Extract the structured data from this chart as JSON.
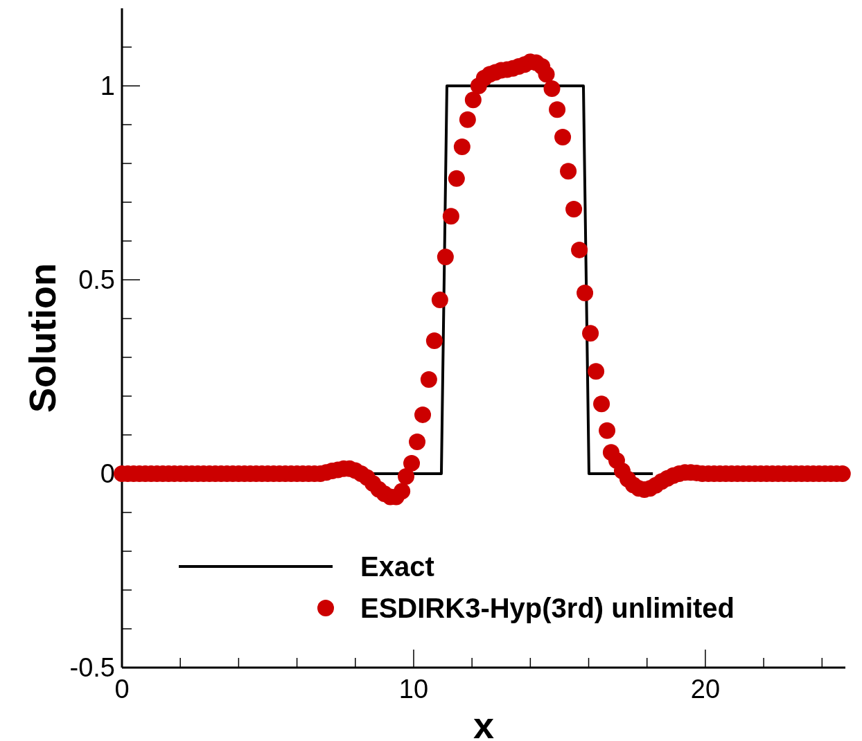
{
  "chart_data": {
    "type": "line",
    "xlabel": "x",
    "ylabel": "Solution",
    "xlim": [
      0,
      24.8
    ],
    "ylim": [
      -0.5,
      1.2
    ],
    "xticks": [
      0,
      {
        "value": 2,
        "label": null
      },
      {
        "value": 4,
        "label": null
      },
      {
        "value": 6,
        "label": null
      },
      {
        "value": 8,
        "label": null
      },
      10,
      {
        "value": 12,
        "label": null
      },
      {
        "value": 14,
        "label": null
      },
      {
        "value": 16,
        "label": null
      },
      {
        "value": 18,
        "label": null
      },
      20,
      {
        "value": 22,
        "label": null
      },
      {
        "value": 24,
        "label": null
      }
    ],
    "yticks": [
      -0.5,
      {
        "value": -0.4,
        "label": null
      },
      {
        "value": -0.3,
        "label": null
      },
      {
        "value": -0.2,
        "label": null
      },
      {
        "value": -0.1,
        "label": null
      },
      0,
      {
        "value": 0.1,
        "label": null
      },
      {
        "value": 0.2,
        "label": null
      },
      {
        "value": 0.3,
        "label": null
      },
      {
        "value": 0.4,
        "label": null
      },
      0.5,
      {
        "value": 0.6,
        "label": null
      },
      {
        "value": 0.7,
        "label": null
      },
      {
        "value": 0.8,
        "label": null
      },
      {
        "value": 0.9,
        "label": null
      },
      1,
      {
        "value": 1.1,
        "label": null
      }
    ],
    "grid": false,
    "legend": "bottom",
    "line_style": "solid",
    "series": [
      {
        "name": "Exact",
        "color": "#000000",
        "type": "line",
        "x": [
          8.6,
          10.95,
          11.14,
          15.82,
          16.01,
          18.2
        ],
        "values": [
          0,
          0,
          1,
          1,
          0,
          0
        ]
      },
      {
        "name": "ESDIRK3-Hyp(3rd) unlimited",
        "type": "scatter",
        "marker": "circle",
        "color": "#cc0000",
        "x": [
          0,
          0.2,
          0.4,
          0.6,
          0.8,
          1.0,
          1.2,
          1.4,
          1.6,
          1.8,
          2.0,
          2.2,
          2.4,
          2.6,
          2.8,
          3.0,
          3.2,
          3.4,
          3.6,
          3.8,
          4.0,
          4.2,
          4.4,
          4.6,
          4.8,
          5.0,
          5.2,
          5.4,
          5.6,
          5.8,
          6.0,
          6.2,
          6.4,
          6.6,
          6.8,
          7.0,
          7.2,
          7.4,
          7.6,
          7.8,
          8.0,
          8.2,
          8.4,
          8.6,
          8.8,
          9.0,
          9.2,
          9.4,
          9.6,
          9.74,
          9.93,
          10.12,
          10.31,
          10.52,
          10.71,
          10.9,
          11.09,
          11.28,
          11.47,
          11.66,
          11.85,
          12.04,
          12.23,
          12.42,
          12.61,
          12.8,
          13.0,
          13.2,
          13.4,
          13.6,
          13.8,
          14.0,
          14.2,
          14.4,
          14.55,
          14.74,
          14.92,
          15.11,
          15.3,
          15.49,
          15.68,
          15.87,
          16.06,
          16.25,
          16.44,
          16.63,
          16.77,
          16.96,
          17.15,
          17.34,
          17.53,
          17.72,
          17.91,
          18.1,
          18.3,
          18.5,
          18.7,
          18.9,
          19.1,
          19.3,
          19.5,
          19.7,
          19.9,
          20.1,
          20.3,
          20.5,
          20.7,
          20.9,
          21.1,
          21.3,
          21.5,
          21.7,
          21.9,
          22.1,
          22.3,
          22.5,
          22.7,
          22.9,
          23.1,
          23.3,
          23.5,
          23.7,
          23.9,
          24.1,
          24.3,
          24.5,
          24.7
        ],
        "values": [
          0,
          0,
          0,
          0,
          0,
          0,
          0,
          0,
          0,
          0,
          0,
          0,
          0,
          0,
          0,
          0,
          0,
          0,
          0,
          0,
          0,
          0,
          0,
          0,
          0,
          0,
          0,
          0,
          0,
          0,
          0,
          0,
          0,
          0,
          0,
          0.003,
          0.007,
          0.01,
          0.013,
          0.013,
          0.008,
          0,
          -0.01,
          -0.025,
          -0.04,
          -0.052,
          -0.06,
          -0.06,
          -0.045,
          -0.007,
          0.027,
          0.082,
          0.152,
          0.243,
          0.343,
          0.448,
          0.559,
          0.664,
          0.761,
          0.843,
          0.913,
          0.964,
          1.0,
          1.02,
          1.03,
          1.035,
          1.04,
          1.042,
          1.045,
          1.05,
          1.055,
          1.062,
          1.06,
          1.05,
          1.03,
          0.993,
          0.939,
          0.868,
          0.78,
          0.682,
          0.577,
          0.466,
          0.362,
          0.264,
          0.18,
          0.111,
          0.055,
          0.034,
          0.007,
          -0.014,
          -0.029,
          -0.038,
          -0.041,
          -0.038,
          -0.03,
          -0.02,
          -0.012,
          -0.005,
          0,
          0.003,
          0.003,
          0.002,
          0,
          0,
          0,
          0,
          0,
          0,
          0,
          0,
          0,
          0,
          0,
          0,
          0,
          0,
          0,
          0,
          0,
          0,
          0,
          0,
          0,
          0,
          0,
          0,
          0
        ]
      }
    ]
  }
}
